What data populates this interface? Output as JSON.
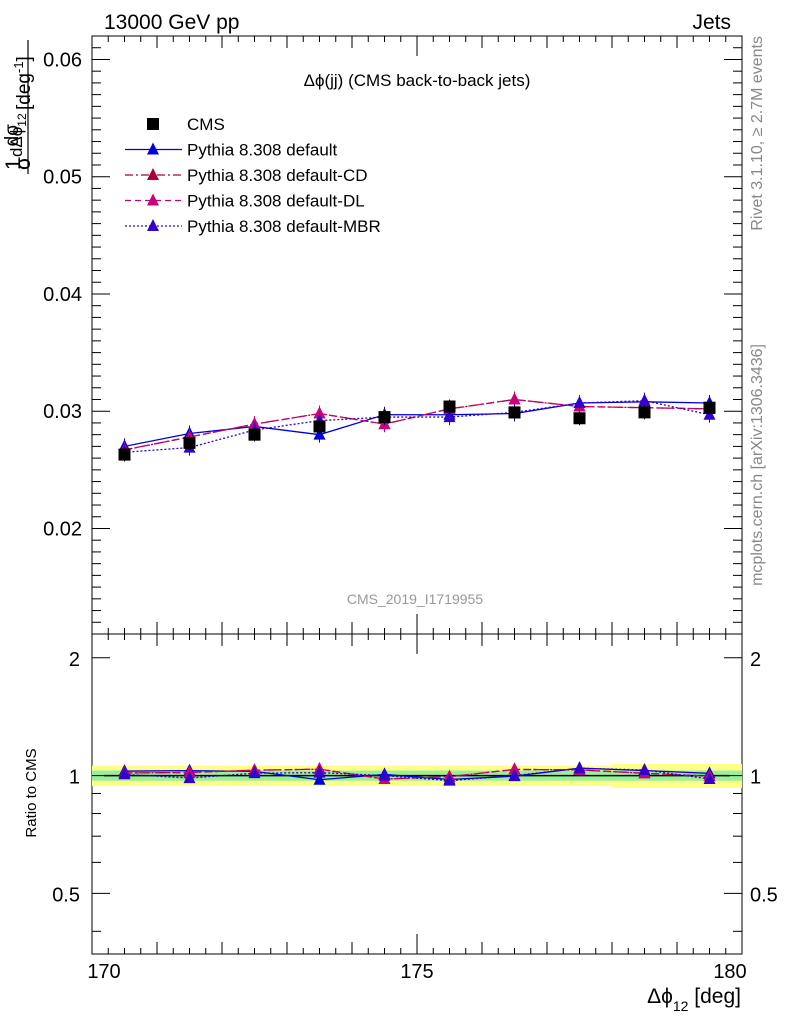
{
  "header": {
    "left": "13000 GeV pp",
    "right": "Jets"
  },
  "side_labels": {
    "rivet": "Rivet 3.1.10, ≥ 2.7M events",
    "mcplots": "mcplots.cern.ch [arXiv:1306.3436]"
  },
  "chart_data": {
    "type": "line",
    "title": "Δϕ(jj) (CMS back-to-back jets)",
    "watermark": "CMS_2019_I1719955",
    "xlabel": "Δϕ12 [deg]",
    "ylabel": "1/σ dσ/dΔϕ12 [deg⁻¹]",
    "xlim": [
      170,
      180
    ],
    "ylim": [
      0.011,
      0.062
    ],
    "x_ticks": [
      "170",
      "175",
      "180"
    ],
    "y_ticks": [
      "0.02",
      "0.03",
      "0.04",
      "0.05",
      "0.06"
    ],
    "legend_position": "top-left",
    "x": [
      170.5,
      171.5,
      172.5,
      173.5,
      174.5,
      175.5,
      176.5,
      177.5,
      178.5,
      179.5
    ],
    "data": {
      "name": "CMS",
      "values": [
        0.0263,
        0.0273,
        0.028,
        0.0287,
        0.0295,
        0.0304,
        0.0299,
        0.0294,
        0.0299,
        0.0303
      ],
      "color": "#000000"
    },
    "series": [
      {
        "name": "Pythia 8.308 default",
        "color": "#0000dd",
        "dash": "",
        "values": [
          0.027,
          0.0281,
          0.0287,
          0.028,
          0.0297,
          0.0297,
          0.0298,
          0.0307,
          0.0308,
          0.0307
        ]
      },
      {
        "name": "Pythia 8.308 default-CD",
        "color": "#aa0033",
        "dash": "8,3,2,3",
        "values": [
          0.0267,
          0.0278,
          0.0289,
          0.0298,
          0.0289,
          0.0302,
          0.031,
          0.0304,
          0.0303,
          0.0302
        ]
      },
      {
        "name": "Pythia 8.308 default-DL",
        "color": "#cc0077",
        "dash": "6,4",
        "values": [
          0.0267,
          0.0278,
          0.0289,
          0.0298,
          0.0289,
          0.0302,
          0.031,
          0.0304,
          0.0303,
          0.0302
        ]
      },
      {
        "name": "Pythia 8.308 default-MBR",
        "color": "#3300cc",
        "dash": "2,2",
        "values": [
          0.0265,
          0.0269,
          0.0284,
          0.0292,
          0.0295,
          0.0295,
          0.0299,
          0.0307,
          0.0309,
          0.0297
        ]
      }
    ],
    "ratio": {
      "ylabel": "Ratio to CMS",
      "ylim": [
        0.35,
        2.3
      ],
      "y_ticks": [
        "0.5",
        "1",
        "2"
      ],
      "band_inner": [
        0.03,
        0.03,
        0.03,
        0.03,
        0.03,
        0.03,
        0.03,
        0.03,
        0.03,
        0.03
      ],
      "band_outer": [
        0.06,
        0.06,
        0.06,
        0.06,
        0.06,
        0.06,
        0.06,
        0.06,
        0.07,
        0.07
      ]
    }
  }
}
